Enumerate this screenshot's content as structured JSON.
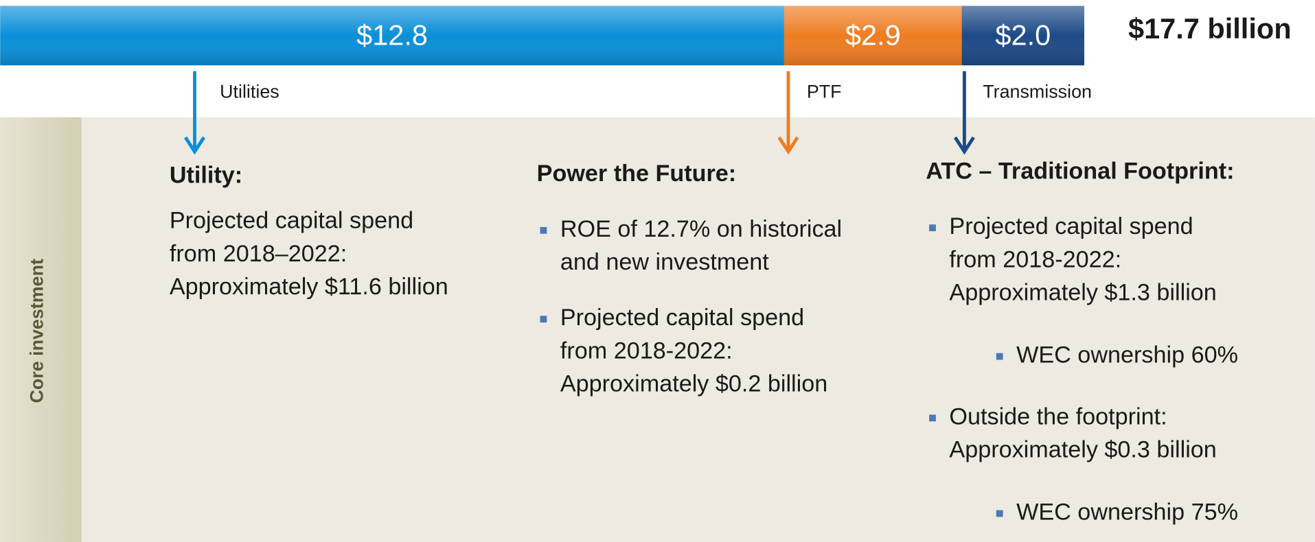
{
  "chart_data": {
    "type": "bar",
    "orientation": "horizontal",
    "stacked": true,
    "total_label": "$17.7 billion",
    "series": [
      {
        "name": "Utilities",
        "color": "#0a8fd8",
        "values": [
          12.8
        ],
        "value_labels": [
          "$12.8"
        ]
      },
      {
        "name": "PTF",
        "color": "#ee7d22",
        "values": [
          2.9
        ],
        "value_labels": [
          "$2.9"
        ]
      },
      {
        "name": "Transmission",
        "color": "#1d4a86",
        "values": [
          2.0
        ],
        "value_labels": [
          "$2.0"
        ]
      }
    ]
  },
  "side_label": "Core investment",
  "columns": [
    {
      "heading": "Utility:",
      "items": [
        {
          "bullet": false,
          "lines": [
            "Projected capital spend",
            "from 2018–2022:",
            "Approximately $11.6 billion"
          ]
        }
      ]
    },
    {
      "heading": "Power the Future:",
      "items": [
        {
          "bullet": true,
          "lines": [
            "ROE of 12.7% on historical",
            "and new investment"
          ]
        },
        {
          "bullet": true,
          "lines": [
            "Projected capital spend",
            "from 2018-2022:",
            "Approximately $0.2 billion"
          ]
        }
      ]
    },
    {
      "heading": "ATC – Traditional Footprint:",
      "items": [
        {
          "bullet": true,
          "lines": [
            "Projected capital spend",
            "from 2018-2022:",
            "Approximately $1.3 billion"
          ]
        },
        {
          "bullet": true,
          "level": 2,
          "lines": [
            "WEC ownership 60%"
          ]
        },
        {
          "bullet": true,
          "lines": [
            "Outside the footprint:",
            "Approximately $0.3 billion"
          ]
        },
        {
          "bullet": true,
          "level": 2,
          "lines": [
            "WEC ownership 75%"
          ]
        }
      ]
    }
  ]
}
